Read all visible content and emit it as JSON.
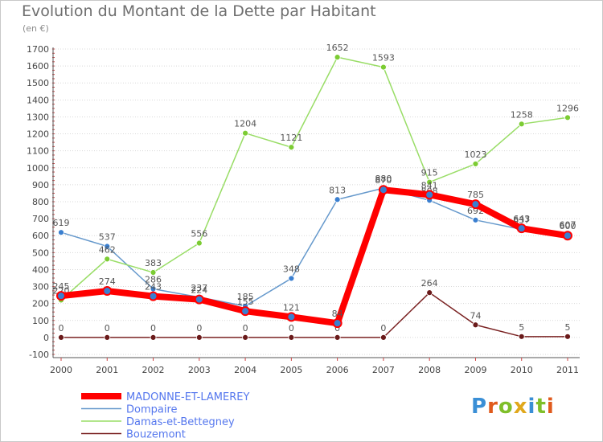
{
  "title": "Evolution du Montant de la Dette par Habitant",
  "unit": "(en €)",
  "logo": {
    "text": "Proxiti",
    "colors": [
      "#3a8fd6",
      "#e05a1c",
      "#7fbf2a",
      "#e0a81c",
      "#3a8fd6",
      "#7fbf2a",
      "#e05a1c"
    ]
  },
  "chart_data": {
    "type": "line",
    "title": "Evolution du Montant de la Dette par Habitant",
    "ylabel": "(en €)",
    "xlabel": "",
    "categories": [
      "2000",
      "2001",
      "2002",
      "2003",
      "2004",
      "2005",
      "2006",
      "2007",
      "2008",
      "2009",
      "2010",
      "2011"
    ],
    "ylim": [
      -100,
      1700
    ],
    "yticks": [
      -100,
      0,
      100,
      200,
      300,
      400,
      500,
      600,
      700,
      800,
      900,
      1000,
      1100,
      1200,
      1300,
      1400,
      1500,
      1600,
      1700
    ],
    "grid": true,
    "legend": "bottom-left",
    "series": [
      {
        "name": "MADONNE-ET-LAMEREY",
        "color": "#ff0000",
        "marker": "#3a7fd0",
        "emphasis": true,
        "values": [
          245,
          274,
          243,
          224,
          155,
          121,
          84,
          870,
          841,
          785,
          643,
          600
        ]
      },
      {
        "name": "Dompaire",
        "color": "#6699cc",
        "marker": "#3a7fd0",
        "values": [
          619,
          537,
          286,
          237,
          185,
          348,
          813,
          880,
          808,
          692,
          637,
          607
        ]
      },
      {
        "name": "Damas-et-Bettegney",
        "color": "#99dd66",
        "marker": "#7ccc33",
        "values": [
          220,
          462,
          383,
          556,
          1204,
          1121,
          1652,
          1593,
          915,
          1023,
          1258,
          1296
        ]
      },
      {
        "name": "Bouzemont",
        "color": "#7a2222",
        "marker": "#6a1a1a",
        "values": [
          0,
          0,
          0,
          0,
          0,
          0,
          0,
          0,
          264,
          74,
          5,
          5
        ]
      }
    ]
  }
}
